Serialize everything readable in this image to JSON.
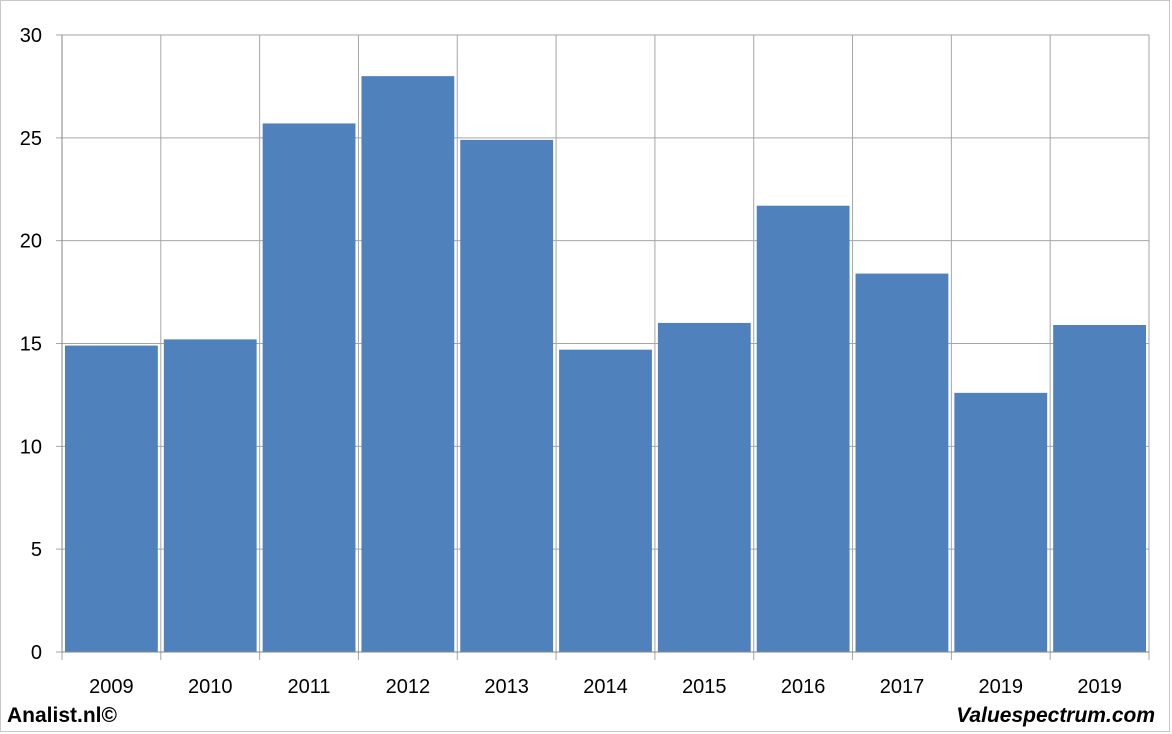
{
  "chart_data": {
    "type": "bar",
    "categories": [
      "2009",
      "2010",
      "2011",
      "2012",
      "2013",
      "2014",
      "2015",
      "2016",
      "2017",
      "2019",
      "2019"
    ],
    "values": [
      14.9,
      15.2,
      25.7,
      28.0,
      24.9,
      14.7,
      16.0,
      21.7,
      18.4,
      12.6,
      15.9
    ],
    "ylim": [
      0,
      30
    ],
    "yticks": [
      0,
      5,
      10,
      15,
      20,
      25,
      30
    ],
    "title": "",
    "xlabel": "",
    "ylabel": "",
    "grid": true,
    "bar_color": "#4f81bd",
    "grid_color": "#a6a6a6"
  },
  "footer": {
    "left": "Analist.nl©",
    "right": "Valuespectrum.com"
  }
}
